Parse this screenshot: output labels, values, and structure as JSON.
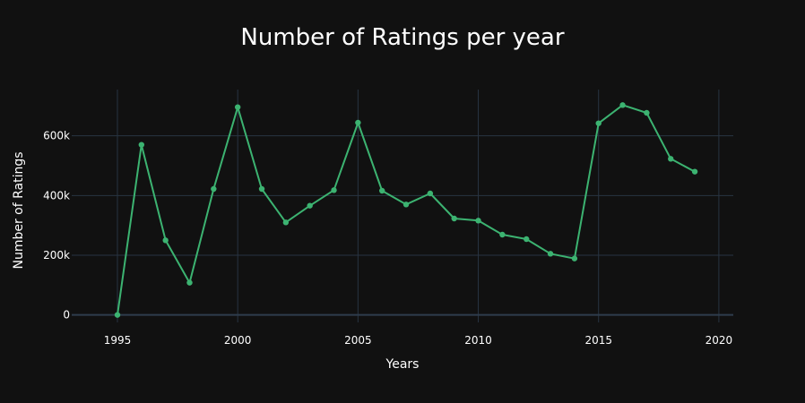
{
  "chart_data": {
    "type": "line",
    "title": "Number of Ratings per year",
    "xlabel": "Years",
    "ylabel": "Number of Ratings",
    "x": [
      1995,
      1996,
      1997,
      1998,
      1999,
      2000,
      2001,
      2002,
      2003,
      2004,
      2005,
      2006,
      2007,
      2008,
      2009,
      2010,
      2011,
      2012,
      2013,
      2014,
      2015,
      2016,
      2017,
      2018,
      2019
    ],
    "series": [
      {
        "values": [
          3,
          570000,
          250000,
          108000,
          422000,
          696000,
          422000,
          310000,
          366000,
          418000,
          644000,
          416000,
          370000,
          407000,
          323000,
          316000,
          269000,
          254000,
          205000,
          189000,
          642000,
          703000,
          677000,
          523000,
          480000
        ],
        "color": "#3cb371",
        "mode": "lines+markers"
      }
    ],
    "xlim": [
      1993.1,
      2020.6
    ],
    "ylim": [
      -25000,
      755000
    ],
    "x_ticks": [
      1995,
      2000,
      2005,
      2010,
      2015,
      2020
    ],
    "x_tick_labels": [
      "1995",
      "2000",
      "2005",
      "2010",
      "2015",
      "2020"
    ],
    "y_ticks": [
      0,
      200000,
      400000,
      600000
    ],
    "y_tick_labels": [
      "0",
      "200k",
      "400k",
      "600k"
    ],
    "grid": true,
    "colors": {
      "background": "#111111",
      "grid": "#283442",
      "line": "#3cb371",
      "text": "#ffffff"
    }
  }
}
